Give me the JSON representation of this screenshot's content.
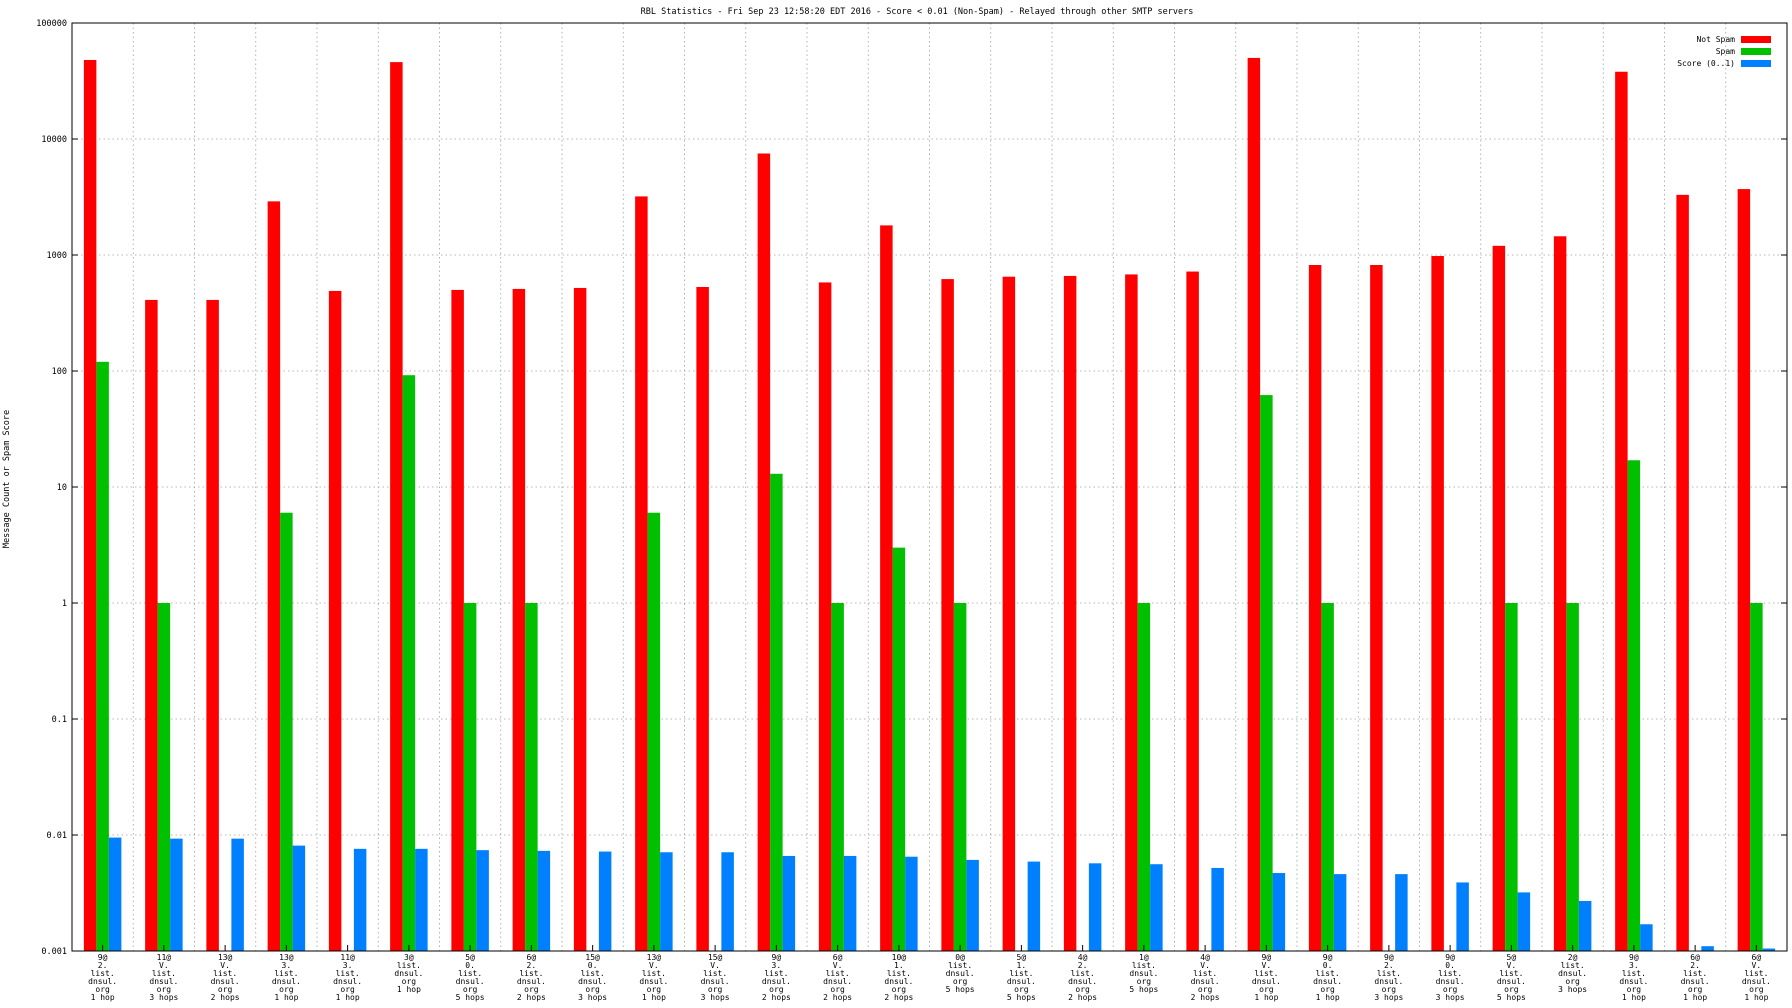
{
  "chart_data": {
    "type": "bar",
    "title": "RBL Statistics - Fri Sep 23 12:58:20 EDT 2016 - Score < 0.01 (Non-Spam) - Relayed through other SMTP servers",
    "ylabel": "Message Count or Spam Score",
    "xlabel": "",
    "yscale": "log",
    "ylim": [
      0.001,
      100000
    ],
    "yticks": [
      "0.001",
      "0.01",
      "0.1",
      "1",
      "10",
      "100",
      "1000",
      "10000",
      "100000"
    ],
    "grid": true,
    "legend_position": "top-right",
    "categories": [
      [
        "9@",
        "2.",
        "list.",
        "dnsul.",
        "org",
        "1 hop"
      ],
      [
        "11@",
        "V.",
        "list.",
        "dnsul.",
        "org",
        "3 hops"
      ],
      [
        "13@",
        "V.",
        "list.",
        "dnsul.",
        "org",
        "2 hops"
      ],
      [
        "13@",
        "3.",
        "list.",
        "dnsul.",
        "org",
        "1 hop"
      ],
      [
        "11@",
        "3.",
        "list.",
        "dnsul.",
        "org",
        "1 hop"
      ],
      [
        "3@",
        "list.",
        "dnsul.",
        "org",
        "1 hop"
      ],
      [
        "5@",
        "0.",
        "list.",
        "dnsul.",
        "org",
        "5 hops"
      ],
      [
        "6@",
        "2.",
        "list.",
        "dnsul.",
        "org",
        "2 hops"
      ],
      [
        "15@",
        "0.",
        "list.",
        "dnsul.",
        "org",
        "3 hops"
      ],
      [
        "13@",
        "V.",
        "list.",
        "dnsul.",
        "org",
        "1 hop"
      ],
      [
        "15@",
        "V.",
        "list.",
        "dnsul.",
        "org",
        "3 hops"
      ],
      [
        "9@",
        "3.",
        "list.",
        "dnsul.",
        "org",
        "2 hops"
      ],
      [
        "6@",
        "V.",
        "list.",
        "dnsul.",
        "org",
        "2 hops"
      ],
      [
        "10@",
        "1.",
        "list.",
        "dnsul.",
        "org",
        "2 hops"
      ],
      [
        "0@",
        "list.",
        "dnsul.",
        "org",
        "5 hops"
      ],
      [
        "5@",
        "1.",
        "list.",
        "dnsul.",
        "org",
        "5 hops"
      ],
      [
        "4@",
        "2.",
        "list.",
        "dnsul.",
        "org",
        "2 hops"
      ],
      [
        "1@",
        "list.",
        "dnsul.",
        "org",
        "5 hops"
      ],
      [
        "4@",
        "V.",
        "list.",
        "dnsul.",
        "org",
        "2 hops"
      ],
      [
        "9@",
        "V.",
        "list.",
        "dnsul.",
        "org",
        "1 hop"
      ],
      [
        "9@",
        "0.",
        "list.",
        "dnsul.",
        "org",
        "1 hop"
      ],
      [
        "9@",
        "2.",
        "list.",
        "dnsul.",
        "org",
        "3 hops"
      ],
      [
        "9@",
        "0.",
        "list.",
        "dnsul.",
        "org",
        "3 hops"
      ],
      [
        "5@",
        "V.",
        "list.",
        "dnsul.",
        "org",
        "5 hops"
      ],
      [
        "2@",
        "list.",
        "dnsul.",
        "org",
        "3 hops"
      ],
      [
        "9@",
        "3.",
        "list.",
        "dnsul.",
        "org",
        "1 hop"
      ],
      [
        "6@",
        "2.",
        "list.",
        "dnsul.",
        "org",
        "1 hop"
      ],
      [
        "6@",
        "V.",
        "list.",
        "dnsul.",
        "org",
        "1 hop"
      ]
    ],
    "series": [
      {
        "name": "Not Spam",
        "color": "#ff0000",
        "values": [
          48000,
          410,
          410,
          2900,
          490,
          46000,
          500,
          510,
          520,
          3200,
          530,
          7500,
          580,
          1800,
          620,
          650,
          660,
          680,
          720,
          50000,
          820,
          820,
          980,
          1200,
          1450,
          38000,
          3300,
          3700
        ]
      },
      {
        "name": "Spam",
        "color": "#00c000",
        "values": [
          120,
          1,
          null,
          6,
          null,
          92,
          1,
          1,
          null,
          6,
          null,
          13,
          1,
          3,
          1,
          null,
          null,
          1,
          null,
          62,
          1,
          null,
          null,
          1,
          1,
          17,
          null,
          1
        ]
      },
      {
        "name": "Score (0..1)",
        "color": "#0080ff",
        "values": [
          0.0095,
          0.0093,
          0.0093,
          0.0081,
          0.0076,
          0.0076,
          0.0074,
          0.0073,
          0.0072,
          0.0071,
          0.0071,
          0.0066,
          0.0066,
          0.0065,
          0.0061,
          0.0059,
          0.0057,
          0.0056,
          0.0052,
          0.0047,
          0.0046,
          0.0046,
          0.0039,
          0.0032,
          0.0027,
          0.0017,
          0.0011,
          0.00105
        ]
      }
    ]
  }
}
